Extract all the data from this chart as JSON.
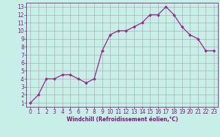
{
  "x": [
    0,
    1,
    2,
    3,
    4,
    5,
    6,
    7,
    8,
    9,
    10,
    11,
    12,
    13,
    14,
    15,
    16,
    17,
    18,
    19,
    20,
    21,
    22,
    23
  ],
  "y": [
    1,
    2,
    4,
    4,
    4.5,
    4.5,
    4,
    3.5,
    4,
    7.5,
    9.5,
    10,
    10,
    10.5,
    11,
    12,
    12,
    13,
    12,
    10.5,
    9.5,
    9,
    7.5,
    7.5
  ],
  "line_color": "#9B2D8E",
  "marker": "D",
  "marker_size": 2,
  "line_width": 1.0,
  "bg_color": "#C8EEE8",
  "grid_color": "#A0A0A0",
  "xlabel": "Windchill (Refroidissement éolien,°C)",
  "xlim": [
    -0.5,
    23.5
  ],
  "ylim": [
    0.5,
    13.5
  ],
  "xticks": [
    0,
    1,
    2,
    3,
    4,
    5,
    6,
    7,
    8,
    9,
    10,
    11,
    12,
    13,
    14,
    15,
    16,
    17,
    18,
    19,
    20,
    21,
    22,
    23
  ],
  "yticks": [
    1,
    2,
    3,
    4,
    5,
    6,
    7,
    8,
    9,
    10,
    11,
    12,
    13
  ],
  "tick_color": "#7B1A7A",
  "label_fontsize": 5.5,
  "tick_fontsize": 5.5
}
